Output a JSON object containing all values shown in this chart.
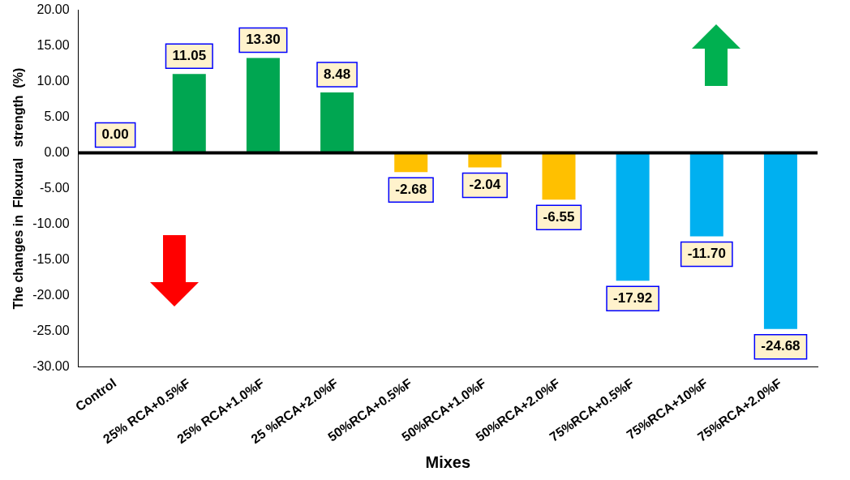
{
  "chart_data": {
    "type": "bar",
    "xlabel": "Mixes",
    "ylabel": "The changes in  Flexural   strength  (%)",
    "categories": [
      "Control",
      "25% RCA+0.5%F",
      "25% RCA+1.0%F",
      "25 %RCA+2.0%F",
      "50%RCA+0.5%F",
      "50%RCA+1.0%F",
      "50%RCA+2.0%F",
      "75%RCA+0.5%F",
      "75%RCA+10%F",
      "75%RCA+2.0%F"
    ],
    "values": [
      0,
      11.05,
      13.3,
      8.48,
      -2.68,
      -2.04,
      -6.55,
      -17.92,
      -11.7,
      -24.68
    ],
    "value_labels": [
      "0.00",
      "11.05",
      "13.30",
      "8.48",
      "-2.68",
      "-2.04",
      "-6.55",
      "-17.92",
      "-11.70",
      "-24.68"
    ],
    "colors": [
      "#00a651",
      "#00a651",
      "#00a651",
      "#00a651",
      "#ffc000",
      "#ffc000",
      "#ffc000",
      "#00b0f0",
      "#00b0f0",
      "#00b0f0"
    ],
    "ylim": [
      -30,
      20
    ],
    "yticks": [
      {
        "value": -30,
        "label": "-30.00"
      },
      {
        "value": -25,
        "label": "-25.00"
      },
      {
        "value": -20,
        "label": "-20.00"
      },
      {
        "value": -15,
        "label": "-15.00"
      },
      {
        "value": -10,
        "label": "-10.00"
      },
      {
        "value": -5,
        "label": "-5.00"
      },
      {
        "value": 0,
        "label": "0.00"
      },
      {
        "value": 5,
        "label": "5.00"
      },
      {
        "value": 10,
        "label": "10.00"
      },
      {
        "value": 15,
        "label": "15.00"
      },
      {
        "value": 20,
        "label": "20.00"
      }
    ],
    "ref_lines": [
      {
        "axis": "y",
        "value": 0,
        "color": "#000000"
      }
    ],
    "grid": false,
    "legend": false
  }
}
